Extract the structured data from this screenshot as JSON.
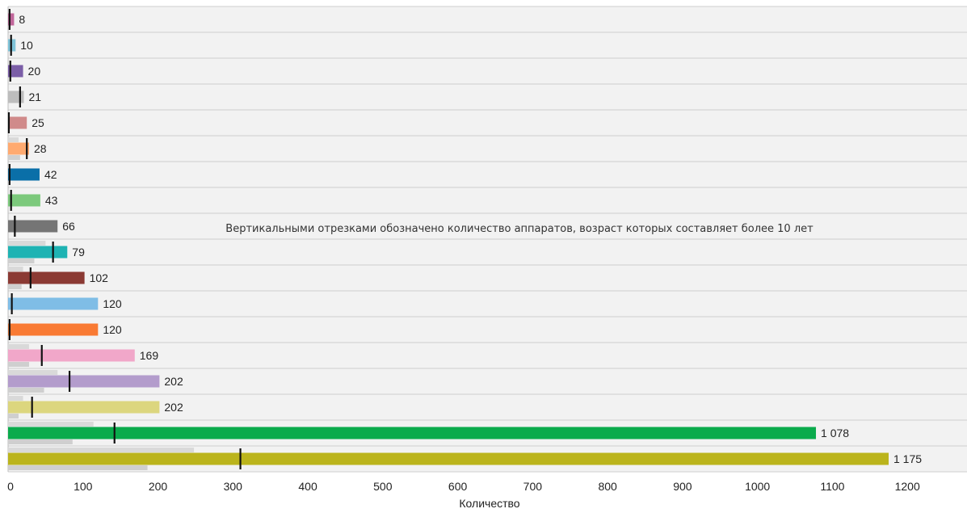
{
  "chart_data": {
    "type": "bar",
    "orientation": "horizontal",
    "title": "",
    "xlabel": "Количество",
    "ylabel": "",
    "xlim": [
      0,
      1250
    ],
    "xticks": [
      0,
      100,
      200,
      300,
      400,
      500,
      600,
      700,
      800,
      900,
      1000,
      1100,
      1200
    ],
    "grid": true,
    "legend": "none",
    "annotation": "Вертикальными отрезками обозначено количество аппаратов, возраст которых составляет более 10 лет",
    "bars": [
      {
        "value": 8,
        "label": "8",
        "over10": 2,
        "color": "#c0669a",
        "shadow": [
          0,
          0
        ]
      },
      {
        "value": 10,
        "label": "10",
        "over10": 4,
        "color": "#7fc3d8",
        "shadow": [
          0,
          0
        ]
      },
      {
        "value": 20,
        "label": "20",
        "over10": 3,
        "color": "#7b5ea7",
        "shadow": [
          0,
          0
        ]
      },
      {
        "value": 21,
        "label": "21",
        "over10": 16,
        "color": "#bdbdbd",
        "shadow": [
          0,
          0
        ]
      },
      {
        "value": 25,
        "label": "25",
        "over10": 1,
        "color": "#d08a8a",
        "shadow": [
          0,
          0
        ]
      },
      {
        "value": 28,
        "label": "28",
        "over10": 25,
        "color": "#ffaa70",
        "shadow": [
          14,
          16
        ]
      },
      {
        "value": 42,
        "label": "42",
        "over10": 2,
        "color": "#0a6fa8",
        "shadow": [
          0,
          0
        ]
      },
      {
        "value": 43,
        "label": "43",
        "over10": 4,
        "color": "#7cc97c",
        "shadow": [
          0,
          0
        ]
      },
      {
        "value": 66,
        "label": "66",
        "over10": 9,
        "color": "#757575",
        "shadow": [
          0,
          0
        ]
      },
      {
        "value": 79,
        "label": "79",
        "over10": 60,
        "color": "#1eb3b3",
        "shadow": [
          50,
          35
        ]
      },
      {
        "value": 102,
        "label": "102",
        "over10": 30,
        "color": "#8b3a34",
        "shadow": [
          20,
          18
        ]
      },
      {
        "value": 120,
        "label": "120",
        "over10": 5,
        "color": "#7fbde6",
        "shadow": [
          0,
          0
        ]
      },
      {
        "value": 120,
        "label": "120",
        "over10": 2,
        "color": "#f97a33",
        "shadow": [
          0,
          0
        ]
      },
      {
        "value": 169,
        "label": "169",
        "over10": 45,
        "color": "#f1a7c9",
        "shadow": [
          28,
          28
        ]
      },
      {
        "value": 202,
        "label": "202",
        "over10": 82,
        "color": "#b39ccc",
        "shadow": [
          66,
          48
        ]
      },
      {
        "value": 202,
        "label": "202",
        "over10": 32,
        "color": "#dcd67e",
        "shadow": [
          20,
          14
        ]
      },
      {
        "value": 1078,
        "label": "1 078",
        "over10": 142,
        "color": "#0aab4c",
        "shadow": [
          114,
          86
        ]
      },
      {
        "value": 1175,
        "label": "1 175",
        "over10": 310,
        "color": "#bbb41c",
        "shadow": [
          248,
          186
        ]
      }
    ]
  }
}
